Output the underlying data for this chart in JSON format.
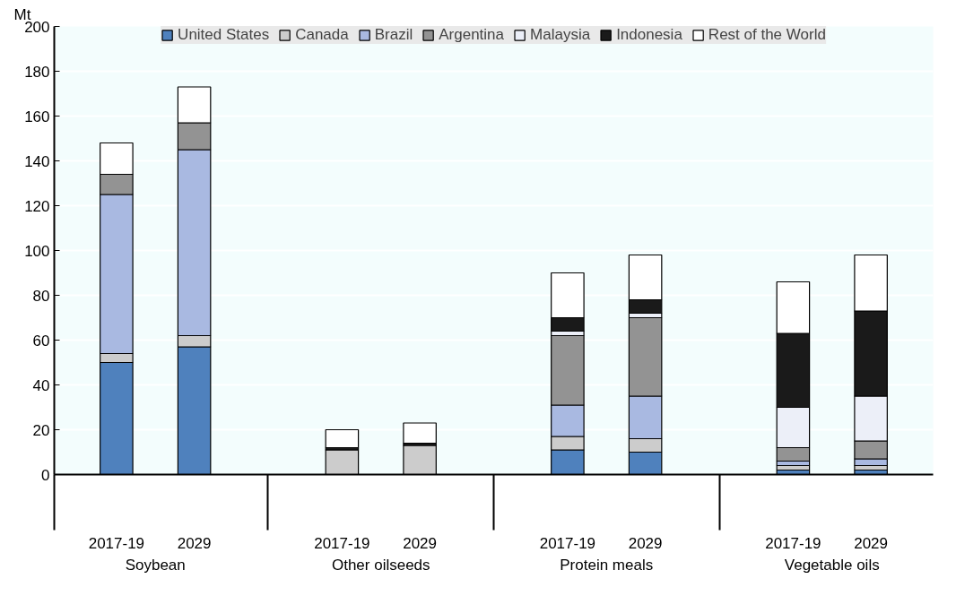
{
  "chart_data": {
    "type": "bar",
    "stacked": true,
    "ylabel": "Mt",
    "categories": [
      "2017-19",
      "2029",
      "2017-19",
      "2029",
      "2017-19",
      "2029",
      "2017-19",
      "2029"
    ],
    "annotations": [
      "Soybean",
      "Other oilseeds",
      "Protein meals",
      "Vegetable oils"
    ],
    "series": [
      {
        "name": "United States",
        "color": "#4f81bd",
        "values": [
          50,
          57,
          null,
          null,
          11,
          10,
          2,
          2
        ]
      },
      {
        "name": "Canada",
        "color": "#cccccc",
        "values": [
          4,
          5,
          11,
          13,
          6,
          6,
          2,
          2
        ]
      },
      {
        "name": "Brazil",
        "color": "#a9b9e1",
        "values": [
          71,
          83,
          null,
          null,
          14,
          19,
          2,
          3
        ]
      },
      {
        "name": "Argentina",
        "color": "#939393",
        "values": [
          9,
          12,
          null,
          null,
          31,
          35,
          6,
          8
        ]
      },
      {
        "name": "Malaysia",
        "color": "#eceff8",
        "values": [
          null,
          null,
          null,
          null,
          2,
          2,
          18,
          20
        ]
      },
      {
        "name": "Indonesia",
        "color": "#1a1a1a",
        "values": [
          null,
          null,
          1,
          1,
          6,
          6,
          33,
          38
        ]
      },
      {
        "name": "Rest of the World",
        "color": "#ffffff",
        "values": [
          14,
          16,
          8,
          9,
          20,
          20,
          23,
          25
        ]
      }
    ],
    "ylim": [
      0,
      200
    ],
    "yticks": [
      0,
      20,
      40,
      60,
      80,
      100,
      120,
      140,
      160,
      180,
      200
    ],
    "grid": "y",
    "legend": "top"
  }
}
